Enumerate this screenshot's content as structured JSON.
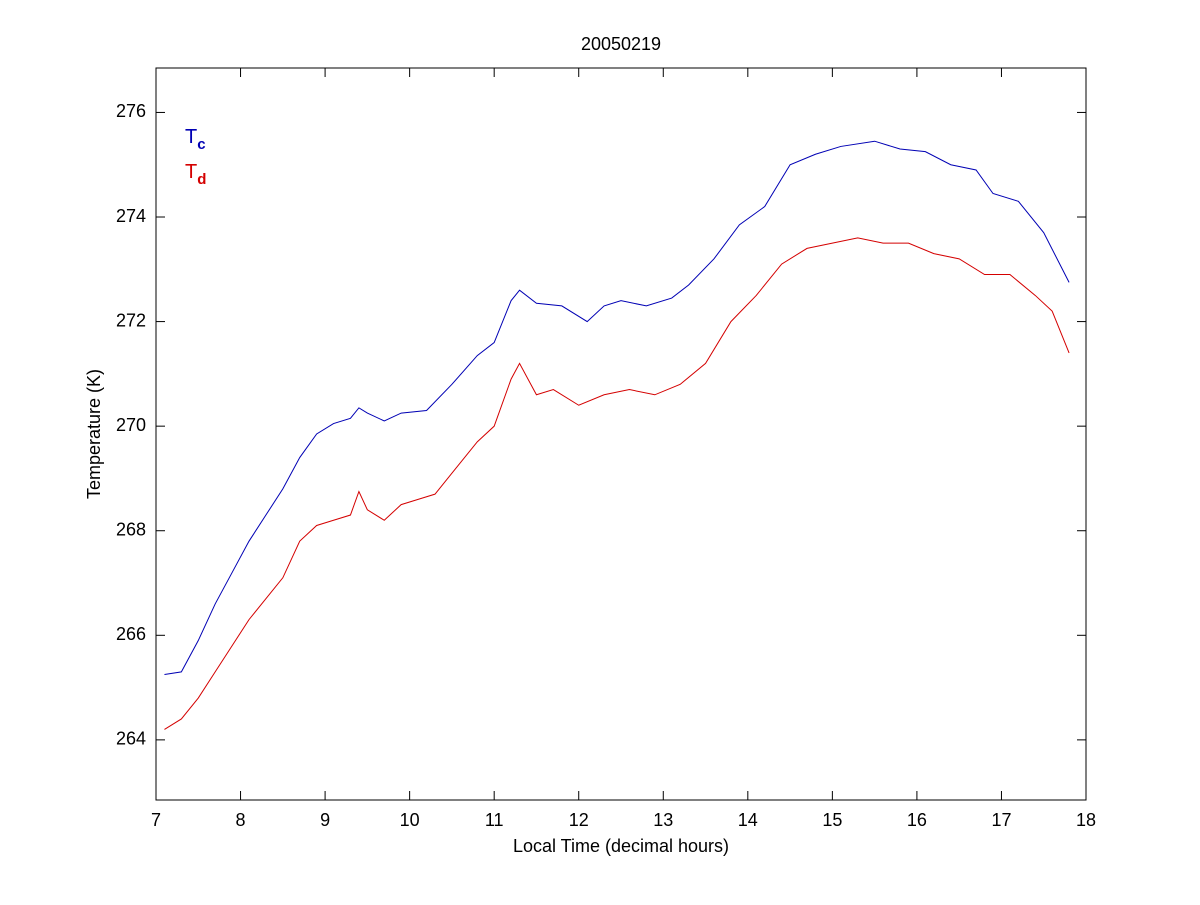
{
  "chart_data": {
    "type": "line",
    "title": "20050219",
    "x_label": "Local Time (decimal hours)",
    "y_label": "Temperature (K)",
    "xlim": [
      7,
      18
    ],
    "ylim": [
      262.85,
      276.85
    ],
    "xticks": [
      7,
      8,
      9,
      10,
      11,
      12,
      13,
      14,
      15,
      16,
      17,
      18
    ],
    "yticks": [
      264,
      266,
      268,
      270,
      272,
      274,
      276
    ],
    "legend": "upper left",
    "grid": false,
    "series": [
      {
        "name": "Tc",
        "color": "#0000b4",
        "x": [
          7.1,
          7.3,
          7.5,
          7.7,
          7.9,
          8.1,
          8.3,
          8.5,
          8.7,
          8.9,
          9.1,
          9.3,
          9.4,
          9.5,
          9.7,
          9.9,
          10.2,
          10.5,
          10.8,
          11.0,
          11.2,
          11.3,
          11.5,
          11.8,
          12.1,
          12.3,
          12.5,
          12.8,
          13.1,
          13.3,
          13.6,
          13.9,
          14.2,
          14.5,
          14.8,
          15.1,
          15.5,
          15.8,
          16.1,
          16.4,
          16.7,
          16.9,
          17.2,
          17.5,
          17.8
        ],
        "values": [
          265.25,
          265.3,
          265.9,
          266.6,
          267.2,
          267.8,
          268.3,
          268.8,
          269.4,
          269.85,
          270.05,
          270.15,
          270.35,
          270.25,
          270.1,
          270.25,
          270.3,
          270.8,
          271.35,
          271.6,
          272.4,
          272.6,
          272.35,
          272.3,
          272.0,
          272.3,
          272.4,
          272.3,
          272.45,
          272.7,
          273.2,
          273.85,
          274.2,
          275.0,
          275.2,
          275.35,
          275.45,
          275.3,
          275.25,
          275.0,
          274.9,
          274.45,
          274.3,
          273.7,
          272.75
        ]
      },
      {
        "name": "Td",
        "color": "#d40000",
        "x": [
          7.1,
          7.3,
          7.5,
          7.7,
          7.9,
          8.1,
          8.3,
          8.5,
          8.7,
          8.9,
          9.1,
          9.3,
          9.4,
          9.5,
          9.7,
          9.9,
          10.1,
          10.3,
          10.5,
          10.8,
          11.0,
          11.2,
          11.3,
          11.5,
          11.7,
          12.0,
          12.3,
          12.6,
          12.9,
          13.2,
          13.5,
          13.8,
          14.1,
          14.4,
          14.7,
          15.0,
          15.3,
          15.6,
          15.9,
          16.2,
          16.5,
          16.8,
          17.1,
          17.4,
          17.6,
          17.8
        ],
        "values": [
          264.2,
          264.4,
          264.8,
          265.3,
          265.8,
          266.3,
          266.7,
          267.1,
          267.8,
          268.1,
          268.2,
          268.3,
          268.75,
          268.4,
          268.2,
          268.5,
          268.6,
          268.7,
          269.1,
          269.7,
          270.0,
          270.9,
          271.2,
          270.6,
          270.7,
          270.4,
          270.6,
          270.7,
          270.6,
          270.8,
          271.2,
          272.0,
          272.5,
          273.1,
          273.4,
          273.5,
          273.6,
          273.5,
          273.5,
          273.3,
          273.2,
          272.9,
          272.9,
          272.5,
          272.2,
          271.4
        ]
      }
    ]
  }
}
